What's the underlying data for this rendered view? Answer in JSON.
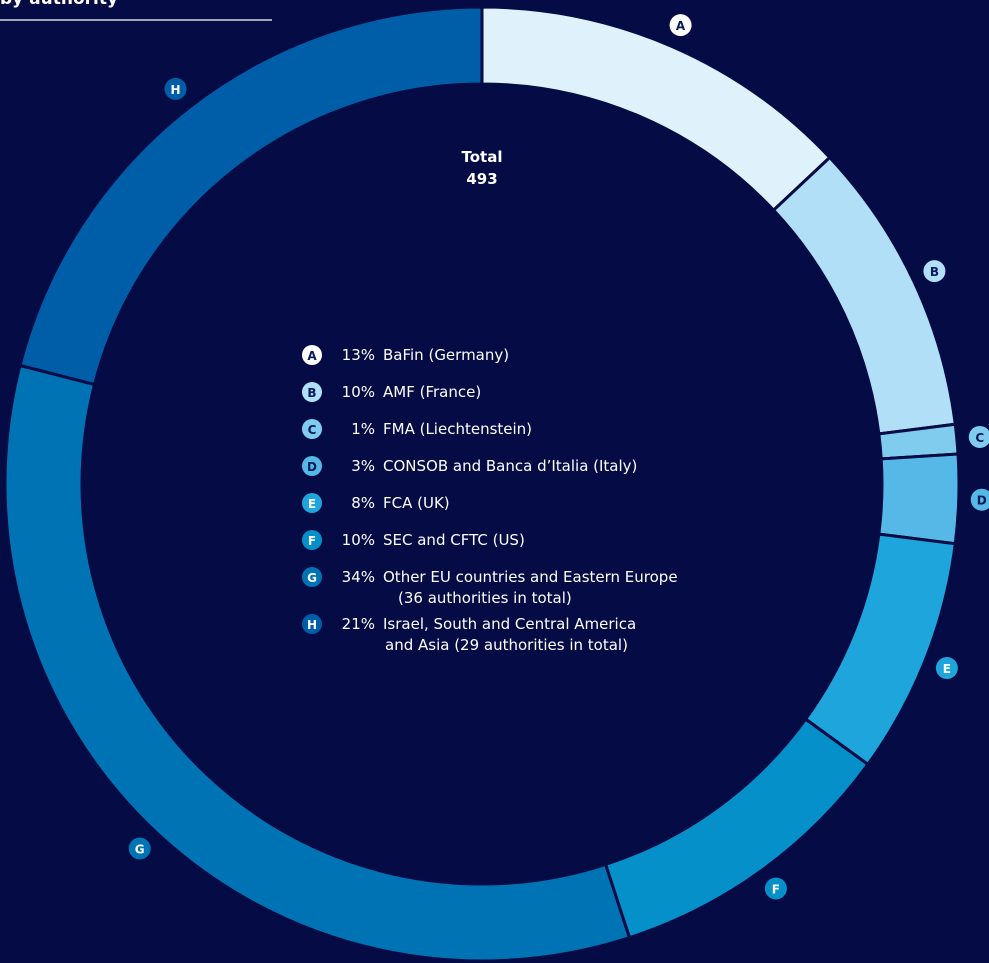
{
  "chart_data": {
    "type": "donut",
    "title": "by authority",
    "center_label": "Total",
    "total": 493,
    "categories": [
      "A",
      "B",
      "C",
      "D",
      "E",
      "F",
      "G",
      "H"
    ],
    "values": [
      13,
      10,
      1,
      3,
      8,
      10,
      34,
      21
    ],
    "value_labels": [
      "13%",
      "10%",
      "1%",
      "3%",
      "8%",
      "10%",
      "34%",
      "21%"
    ],
    "labels": [
      [
        "BaFin (Germany)"
      ],
      [
        "AMF (France)"
      ],
      [
        "FMA (Liechtenstein)"
      ],
      [
        "CONSOB and Banca d’Italia (Italy)"
      ],
      [
        "FCA (UK)"
      ],
      [
        "SEC and CFTC (US)"
      ],
      [
        "Other EU countries and Eastern Europe",
        "(36 authorities in total)"
      ],
      [
        "Israel, South and Central America",
        "and Asia (29 authorities in total)"
      ]
    ],
    "colors": [
      "#dff1fb",
      "#b0dff7",
      "#80ccef",
      "#56b8e7",
      "#1ea5db",
      "#0590c9",
      "#0073b5",
      "#005ea8"
    ]
  }
}
